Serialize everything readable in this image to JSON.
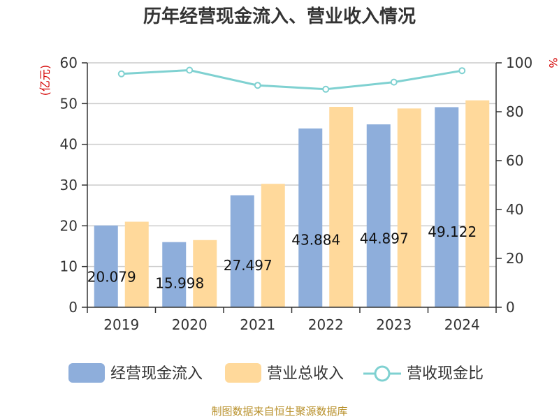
{
  "chart_data": {
    "type": "bar",
    "title": "历年经营现金流入、营业收入情况",
    "categories": [
      "2019",
      "2020",
      "2021",
      "2022",
      "2023",
      "2024"
    ],
    "series": [
      {
        "name": "经营现金流入",
        "axis": "left",
        "color": "#8eaedb",
        "values": [
          20.079,
          15.998,
          27.497,
          43.884,
          44.897,
          49.122
        ],
        "labels": [
          "20.079",
          "15.998",
          "27.497",
          "43.884",
          "44.897",
          "49.122"
        ]
      },
      {
        "name": "营业总收入",
        "axis": "left",
        "color": "#ffd99b",
        "values": [
          21.0,
          16.5,
          30.3,
          49.2,
          48.8,
          50.8
        ]
      },
      {
        "name": "营收现金比",
        "axis": "right",
        "type": "line",
        "color": "#7fd1d1",
        "values": [
          95.5,
          97.0,
          90.8,
          89.2,
          92.1,
          96.8
        ]
      }
    ],
    "left_axis": {
      "unit_label": "(亿元)",
      "ylim": [
        0,
        60
      ],
      "ticks": [
        "0",
        "10",
        "20",
        "30",
        "40",
        "50",
        "60"
      ]
    },
    "right_axis": {
      "unit_label": "%",
      "ylim": [
        0,
        100
      ],
      "ticks": [
        "0",
        "20",
        "40",
        "60",
        "80",
        "100"
      ]
    },
    "grid": true,
    "legend_position": "bottom"
  },
  "source": "制图数据来自恒生聚源数据库"
}
